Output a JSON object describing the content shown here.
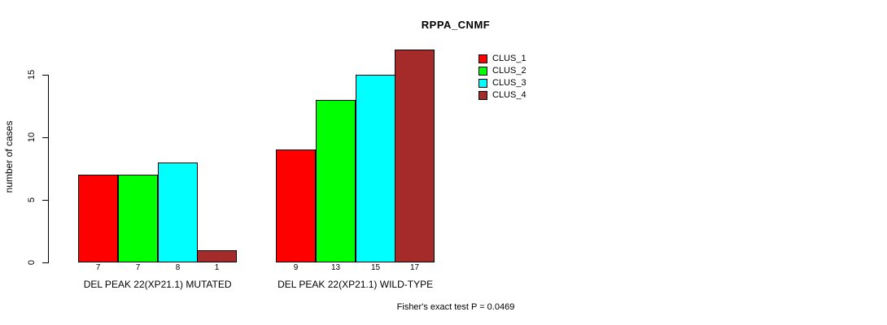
{
  "title": "RPPA_CNMF",
  "ylabel": "number of cases",
  "footnote": "Fisher's exact test P = 0.0469",
  "chart_data": {
    "type": "bar",
    "title": "RPPA_CNMF",
    "xlabel": "",
    "ylabel": "number of cases",
    "ylim": [
      0,
      17
    ],
    "yticks": [
      0,
      5,
      10,
      15
    ],
    "grid": false,
    "legend_position": "top-right",
    "categories": [
      "DEL PEAK 22(XP21.1) MUTATED",
      "DEL PEAK 22(XP21.1) WILD-TYPE"
    ],
    "series": [
      {
        "name": "CLUS_1",
        "color": "#ff0000",
        "values": [
          7,
          9
        ]
      },
      {
        "name": "CLUS_2",
        "color": "#00ff00",
        "values": [
          7,
          13
        ]
      },
      {
        "name": "CLUS_3",
        "color": "#00ffff",
        "values": [
          8,
          15
        ]
      },
      {
        "name": "CLUS_4",
        "color": "#a52a2a",
        "values": [
          1,
          17
        ]
      }
    ],
    "bar_value_labels": [
      [
        7,
        7,
        8,
        1
      ],
      [
        9,
        13,
        15,
        17
      ]
    ],
    "footnote": "Fisher's exact test P = 0.0469"
  }
}
